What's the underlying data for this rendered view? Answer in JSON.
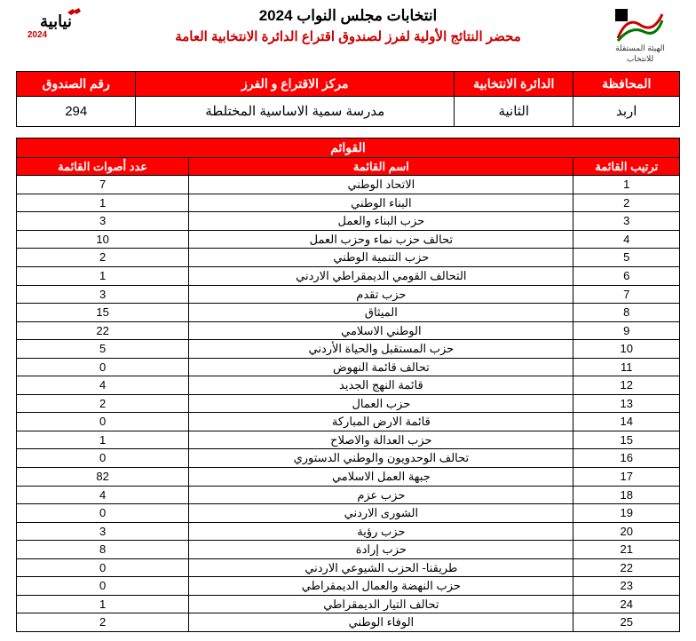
{
  "header": {
    "title": "انتخابات مجلس النواب 2024",
    "subtitle": "محضر النتائج الأولية لفرز لصندوق اقتراع الدائرة الانتخابية العامة",
    "iec_label_1": "الهيئة المستقلة",
    "iec_label_2": "للانتخاب",
    "year_badge": "2024"
  },
  "watermark": "نتائج أولية",
  "info": {
    "headers": {
      "governorate": "المحافظة",
      "district": "الدائرة الانتخابية",
      "center": "مركز الاقتراع و الفرز",
      "box": "رقم الصندوق"
    },
    "values": {
      "governorate": "اربد",
      "district": "الثانية",
      "center": "مدرسة سمية الاساسية المختلطة",
      "box": "294"
    }
  },
  "lists": {
    "title": "القوائم",
    "headers": {
      "rank": "ترتيب القائمة",
      "name": "اسم القائمة",
      "votes": "عدد أصوات القائمة"
    },
    "rows": [
      {
        "rank": "1",
        "name": "الاتحاد الوطني",
        "votes": "7"
      },
      {
        "rank": "2",
        "name": "البناء الوطني",
        "votes": "1"
      },
      {
        "rank": "3",
        "name": "حزب البناء والعمل",
        "votes": "3"
      },
      {
        "rank": "4",
        "name": "تحالف حزب نماء وحزب العمل",
        "votes": "10"
      },
      {
        "rank": "5",
        "name": "حزب التنمية الوطني",
        "votes": "2"
      },
      {
        "rank": "6",
        "name": "التحالف القومي الديمقراطي الاردني",
        "votes": "1"
      },
      {
        "rank": "7",
        "name": "حزب تقدم",
        "votes": "3"
      },
      {
        "rank": "8",
        "name": "الميثاق",
        "votes": "15"
      },
      {
        "rank": "9",
        "name": "الوطني الاسلامي",
        "votes": "22"
      },
      {
        "rank": "10",
        "name": "حزب المستقبل والحياة الأردني",
        "votes": "5"
      },
      {
        "rank": "11",
        "name": "تحالف قائمة النهوض",
        "votes": "0"
      },
      {
        "rank": "12",
        "name": "قائمة النهج الجديد",
        "votes": "4"
      },
      {
        "rank": "13",
        "name": "حزب العمال",
        "votes": "2"
      },
      {
        "rank": "14",
        "name": "قائمة الارض المباركة",
        "votes": "0"
      },
      {
        "rank": "15",
        "name": "حزب العدالة والاصلاح",
        "votes": "1"
      },
      {
        "rank": "16",
        "name": "تحالف الوحدويون والوطني الدستوري",
        "votes": "0"
      },
      {
        "rank": "17",
        "name": "جبهة العمل الاسلامي",
        "votes": "82"
      },
      {
        "rank": "18",
        "name": "حزب عزم",
        "votes": "4"
      },
      {
        "rank": "19",
        "name": "الشورى الاردني",
        "votes": "0"
      },
      {
        "rank": "20",
        "name": "حزب رؤية",
        "votes": "3"
      },
      {
        "rank": "21",
        "name": "حزب إرادة",
        "votes": "8"
      },
      {
        "rank": "22",
        "name": "طريقنا- الحزب الشيوعي الاردني",
        "votes": "0"
      },
      {
        "rank": "23",
        "name": "حزب النهضة والعمال الديمقراطي",
        "votes": "0"
      },
      {
        "rank": "24",
        "name": "تحالف التيار الديمقراطي",
        "votes": "1"
      },
      {
        "rank": "25",
        "name": "الوفاء الوطني",
        "votes": "2"
      }
    ]
  },
  "colors": {
    "brand_red": "#ff0000",
    "text_black": "#000000",
    "bg": "#ffffff"
  }
}
